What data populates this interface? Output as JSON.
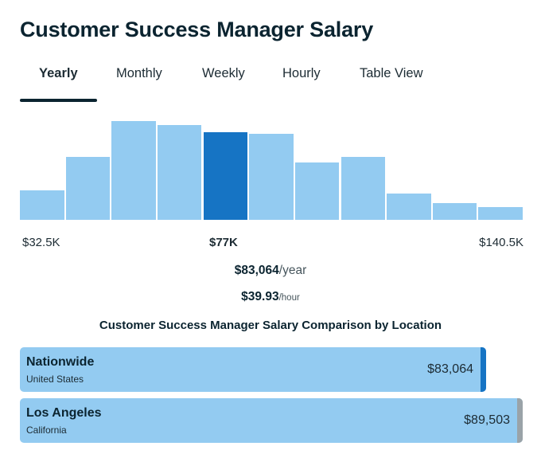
{
  "page_title": "Customer Success Manager Salary",
  "tabs": [
    {
      "label": "Yearly",
      "active": true
    },
    {
      "label": "Monthly",
      "active": false
    },
    {
      "label": "Weekly",
      "active": false
    },
    {
      "label": "Hourly",
      "active": false
    },
    {
      "label": "Table View",
      "active": false
    }
  ],
  "histogram": {
    "relative_heights": [
      0.3,
      0.64,
      1.0,
      0.96,
      0.89,
      0.87,
      0.58,
      0.64,
      0.27,
      0.17,
      0.13
    ],
    "highlight_index": 4,
    "bar_color": "#93cbf1",
    "highlight_color": "#1674c4"
  },
  "axis": {
    "min_label": "$32.5K",
    "median_label": "$77K",
    "max_label": "$140.5K"
  },
  "average": {
    "yearly_amount": "$83,064",
    "yearly_unit": "/year",
    "hourly_amount": "$39.93",
    "hourly_unit": "/hour"
  },
  "comparison": {
    "title": "Customer Success Manager Salary Comparison by Location",
    "locations": [
      {
        "name": "Nationwide",
        "sub": "United States",
        "value": "$83,064",
        "fill_fraction": 0.928,
        "marker_color": "#1674c4"
      },
      {
        "name": "Los Angeles",
        "sub": "California",
        "value": "$89,503",
        "fill_fraction": 1.0,
        "marker_color": "#9aa3a8"
      }
    ]
  }
}
